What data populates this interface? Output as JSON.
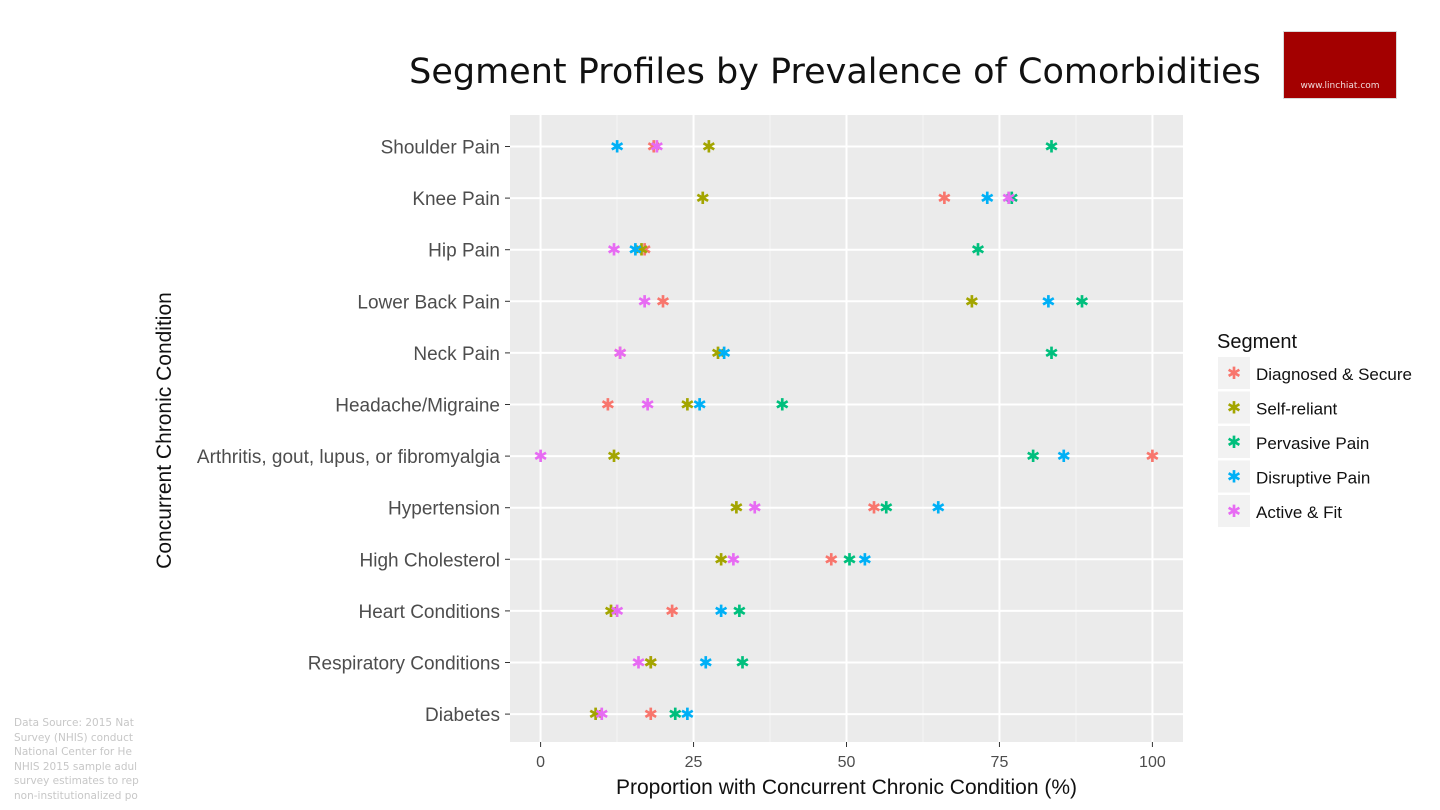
{
  "chart_data": {
    "type": "scatter",
    "title": "Segment Profiles by Prevalence of Comorbidities",
    "xlabel": "Proportion with Concurrent Chronic Condition (%)",
    "ylabel": "Concurrent Chronic Condition",
    "xlim": [
      -5,
      105
    ],
    "xticks": [
      0,
      25,
      50,
      75,
      100
    ],
    "categories": [
      "Shoulder Pain",
      "Knee Pain",
      "Hip Pain",
      "Lower Back Pain",
      "Neck Pain",
      "Headache/Migraine",
      "Arthritis, gout, lupus, or fibromyalgia",
      "Hypertension",
      "High Cholesterol",
      "Heart Conditions",
      "Respiratory Conditions",
      "Diabetes"
    ],
    "legend": {
      "title": "Segment",
      "position": "right"
    },
    "grid": true,
    "marker": "✱",
    "series": [
      {
        "name": "Diagnosed & Secure",
        "color": "#f8766d",
        "values": [
          18.5,
          66,
          17,
          20,
          13,
          11,
          100,
          54.5,
          47.5,
          21.5,
          18,
          18
        ]
      },
      {
        "name": "Self-reliant",
        "color": "#a3a500",
        "values": [
          27.5,
          26.5,
          16.5,
          70.5,
          29,
          24,
          12,
          32,
          29.5,
          11.5,
          18,
          9
        ]
      },
      {
        "name": "Pervasive Pain",
        "color": "#00bf7d",
        "values": [
          83.5,
          77,
          71.5,
          88.5,
          83.5,
          39.5,
          80.5,
          56.5,
          50.5,
          32.5,
          33,
          22
        ]
      },
      {
        "name": "Disruptive Pain",
        "color": "#00b0f6",
        "values": [
          12.5,
          73,
          15.5,
          83,
          30,
          26,
          85.5,
          65,
          53,
          29.5,
          27,
          24
        ]
      },
      {
        "name": "Active & Fit",
        "color": "#e76bf3",
        "values": [
          19,
          76.5,
          12,
          17,
          13,
          17.5,
          0,
          35,
          31.5,
          12.5,
          16,
          10
        ]
      }
    ]
  },
  "source_lines": [
    "Data Source: 2015 Nat",
    "Survey (NHIS) conduct",
    "National Center for He",
    "NHIS 2015 sample adul",
    "survey estimates to rep",
    "non-institutionalized po"
  ],
  "logo_text": "www.linchiat.com"
}
